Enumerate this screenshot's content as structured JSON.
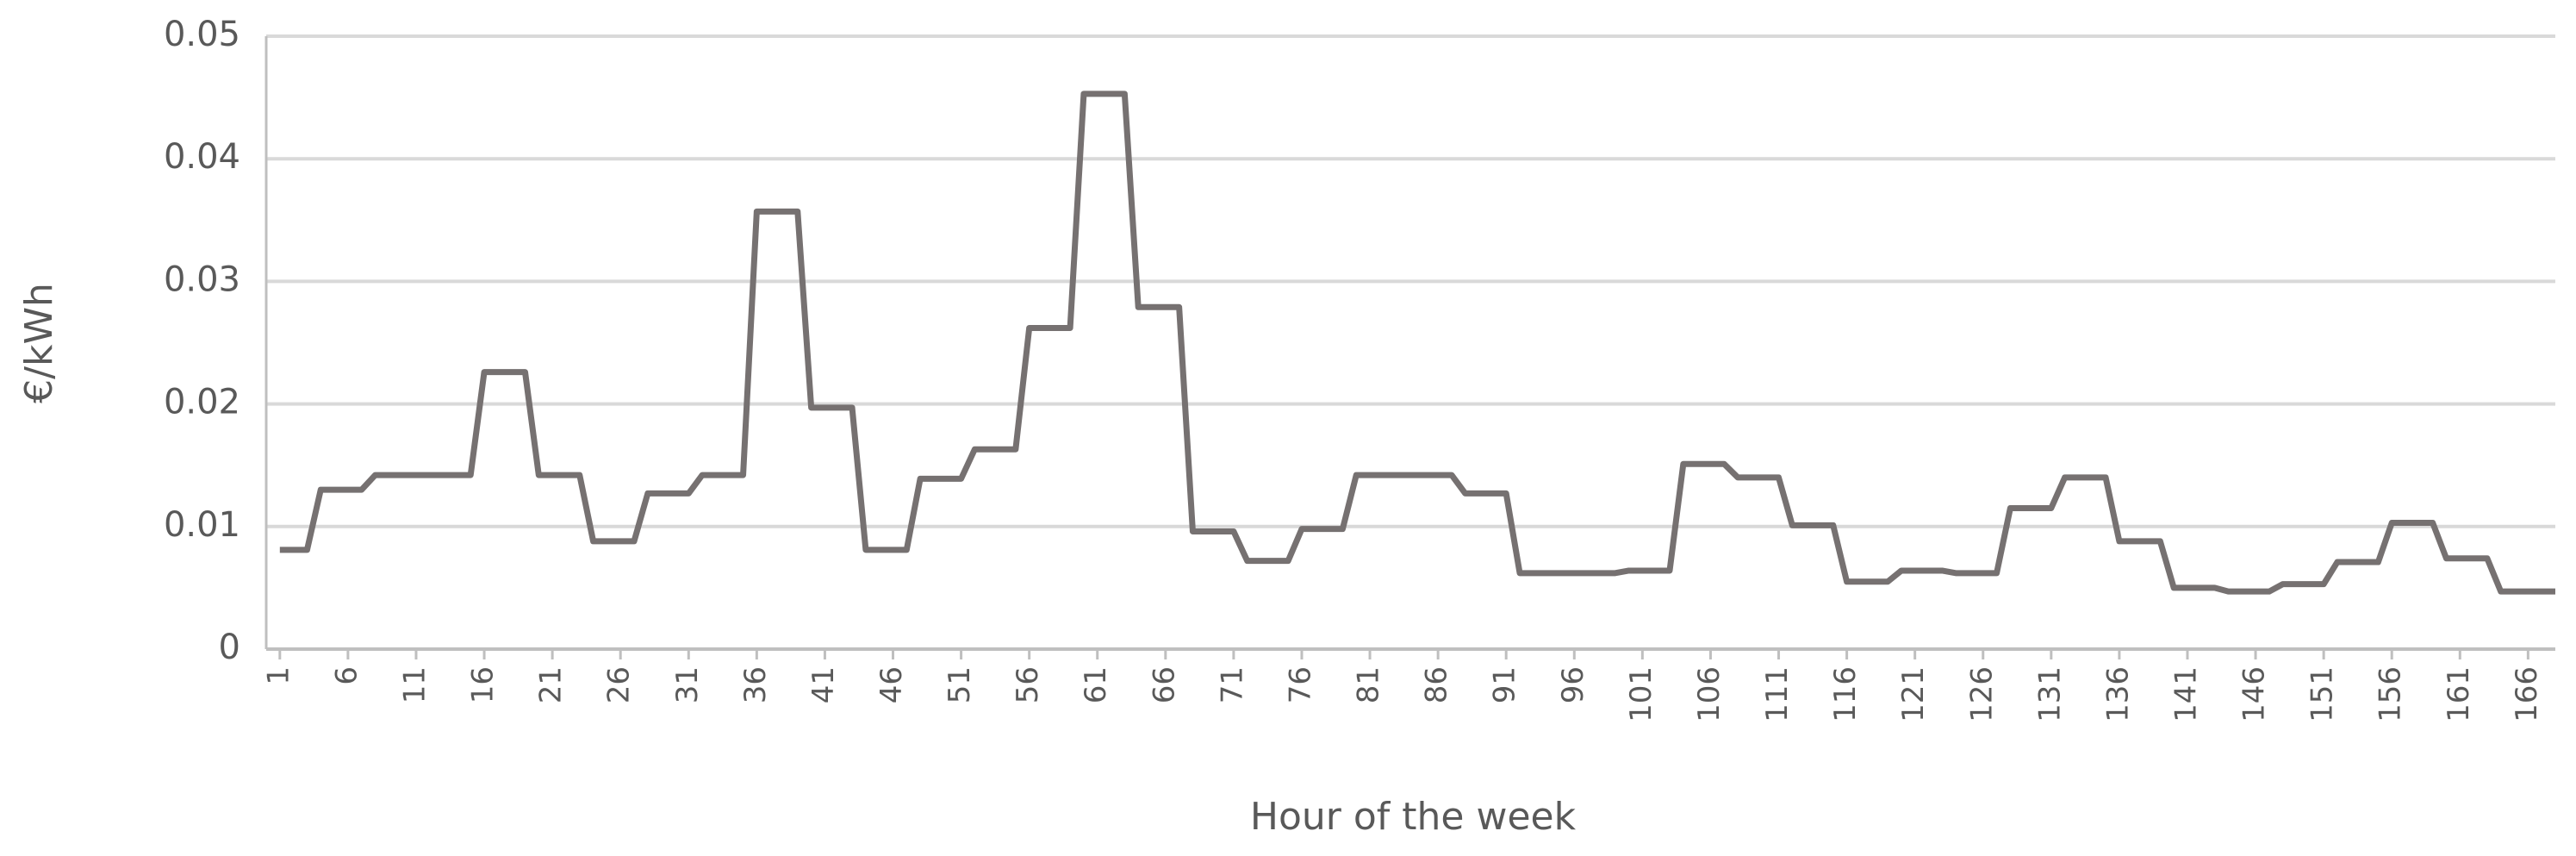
{
  "chart_data": {
    "type": "line",
    "ylabel": "€/kWh",
    "xlabel": "Hour of the week",
    "color": "#767171",
    "grid": true,
    "xlim": [
      0,
      168
    ],
    "ylim": [
      0,
      0.05
    ],
    "yticks": [
      0,
      0.01,
      0.02,
      0.03,
      0.04,
      0.05
    ],
    "xticks": [
      1,
      6,
      11,
      16,
      21,
      26,
      31,
      36,
      41,
      46,
      51,
      56,
      61,
      66,
      71,
      76,
      81,
      86,
      91,
      96,
      101,
      106,
      111,
      116,
      121,
      126,
      131,
      136,
      141,
      146,
      151,
      156,
      161,
      166
    ],
    "x": [
      1,
      2,
      3,
      4,
      5,
      6,
      7,
      8,
      9,
      10,
      11,
      12,
      13,
      14,
      15,
      16,
      17,
      18,
      19,
      20,
      21,
      22,
      23,
      24,
      25,
      26,
      27,
      28,
      29,
      30,
      31,
      32,
      33,
      34,
      35,
      36,
      37,
      38,
      39,
      40,
      41,
      42,
      43,
      44,
      45,
      46,
      47,
      48,
      49,
      50,
      51,
      52,
      53,
      54,
      55,
      56,
      57,
      58,
      59,
      60,
      61,
      62,
      63,
      64,
      65,
      66,
      67,
      68,
      69,
      70,
      71,
      72,
      73,
      74,
      75,
      76,
      77,
      78,
      79,
      80,
      81,
      82,
      83,
      84,
      85,
      86,
      87,
      88,
      89,
      90,
      91,
      92,
      93,
      94,
      95,
      96,
      97,
      98,
      99,
      100,
      101,
      102,
      103,
      104,
      105,
      106,
      107,
      108,
      109,
      110,
      111,
      112,
      113,
      114,
      115,
      116,
      117,
      118,
      119,
      120,
      121,
      122,
      123,
      124,
      125,
      126,
      127,
      128,
      129,
      130,
      131,
      132,
      133,
      134,
      135,
      136,
      137,
      138,
      139,
      140,
      141,
      142,
      143,
      144,
      145,
      146,
      147,
      148,
      149,
      150,
      151,
      152,
      153,
      154,
      155,
      156,
      157,
      158,
      159,
      160,
      161,
      162,
      163,
      164,
      165,
      166,
      167,
      168
    ],
    "values": [
      0.0081,
      0.0081,
      0.0081,
      0.013,
      0.013,
      0.013,
      0.013,
      0.0142,
      0.0142,
      0.0142,
      0.0142,
      0.0142,
      0.0142,
      0.0142,
      0.0142,
      0.0226,
      0.0226,
      0.0226,
      0.0226,
      0.0142,
      0.0142,
      0.0142,
      0.0142,
      0.0088,
      0.0088,
      0.0088,
      0.0088,
      0.0127,
      0.0127,
      0.0127,
      0.0127,
      0.0142,
      0.0142,
      0.0142,
      0.0142,
      0.0357,
      0.0357,
      0.0357,
      0.0357,
      0.0197,
      0.0197,
      0.0197,
      0.0197,
      0.0081,
      0.0081,
      0.0081,
      0.0081,
      0.0139,
      0.0139,
      0.0139,
      0.0139,
      0.0163,
      0.0163,
      0.0163,
      0.0163,
      0.0262,
      0.0262,
      0.0262,
      0.0262,
      0.0453,
      0.0453,
      0.0453,
      0.0453,
      0.0279,
      0.0279,
      0.0279,
      0.0279,
      0.0096,
      0.0096,
      0.0096,
      0.0096,
      0.0072,
      0.0072,
      0.0072,
      0.0072,
      0.0098,
      0.0098,
      0.0098,
      0.0098,
      0.0142,
      0.0142,
      0.0142,
      0.0142,
      0.0142,
      0.0142,
      0.0142,
      0.0142,
      0.0127,
      0.0127,
      0.0127,
      0.0127,
      0.0062,
      0.0062,
      0.0062,
      0.0062,
      0.0062,
      0.0062,
      0.0062,
      0.0062,
      0.0064,
      0.0064,
      0.0064,
      0.0064,
      0.0151,
      0.0151,
      0.0151,
      0.0151,
      0.014,
      0.014,
      0.014,
      0.014,
      0.0101,
      0.0101,
      0.0101,
      0.0101,
      0.0055,
      0.0055,
      0.0055,
      0.0055,
      0.0064,
      0.0064,
      0.0064,
      0.0064,
      0.0062,
      0.0062,
      0.0062,
      0.0062,
      0.0115,
      0.0115,
      0.0115,
      0.0115,
      0.014,
      0.014,
      0.014,
      0.014,
      0.0088,
      0.0088,
      0.0088,
      0.0088,
      0.005,
      0.005,
      0.005,
      0.005,
      0.0047,
      0.0047,
      0.0047,
      0.0047,
      0.0053,
      0.0053,
      0.0053,
      0.0053,
      0.0071,
      0.0071,
      0.0071,
      0.0071,
      0.0103,
      0.0103,
      0.0103,
      0.0103,
      0.0074,
      0.0074,
      0.0074,
      0.0074,
      0.0047,
      0.0047,
      0.0047,
      0.0047,
      0.0047
    ]
  }
}
